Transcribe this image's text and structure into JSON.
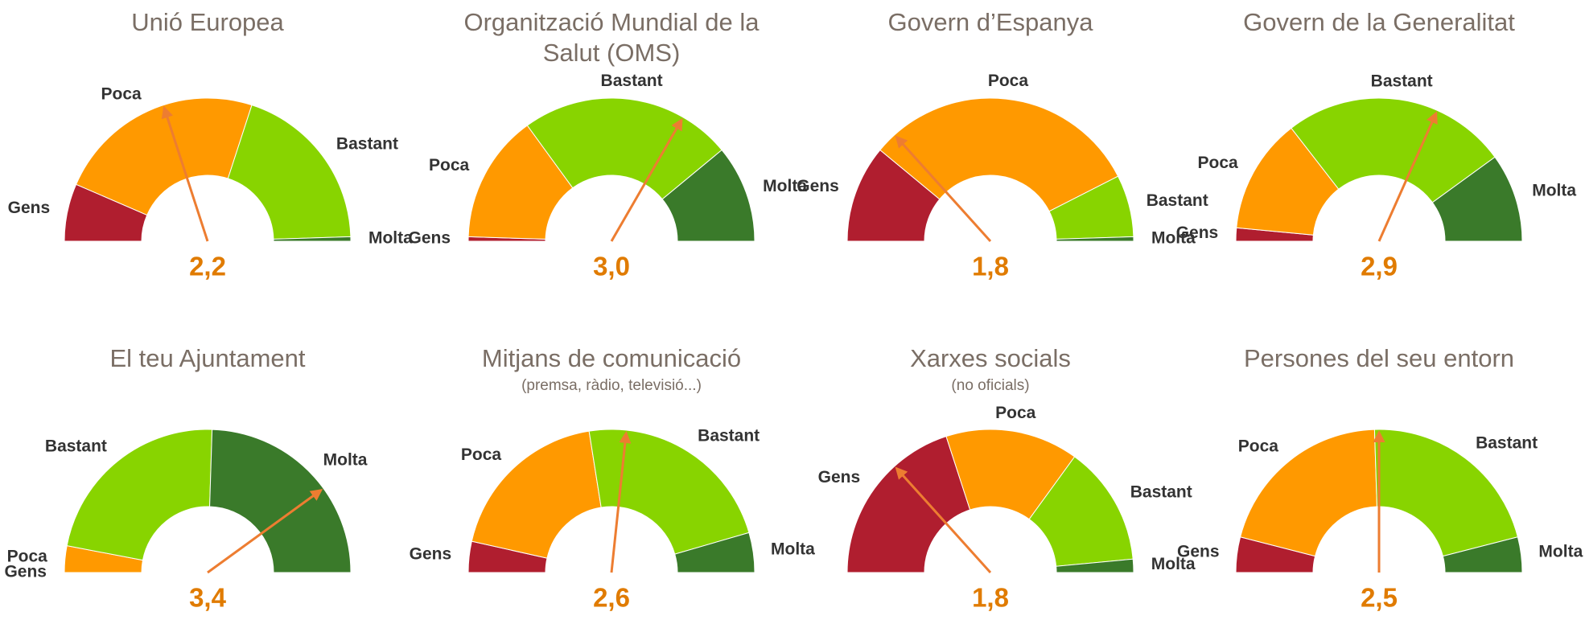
{
  "chart_data": [
    {
      "type": "gauge",
      "title": "Unió Europea",
      "categories": [
        "Gens",
        "Poca",
        "Bastant",
        "Molta"
      ],
      "values": [
        13,
        47,
        39,
        1
      ],
      "colors": [
        "#b01e2f",
        "#ff9900",
        "#88d400",
        "#3a7a2a"
      ],
      "needle": 2.2,
      "needle_label": "2,2",
      "needle_lim": [
        1,
        4
      ]
    },
    {
      "type": "gauge",
      "title": "Organització Mundial de la Salut (OMS)",
      "categories": [
        "Gens",
        "Poca",
        "Bastant",
        "Molta"
      ],
      "values": [
        1,
        29,
        48,
        22
      ],
      "colors": [
        "#b01e2f",
        "#ff9900",
        "#88d400",
        "#3a7a2a"
      ],
      "needle": 3.0,
      "needle_label": "3,0",
      "needle_lim": [
        1,
        4
      ]
    },
    {
      "type": "gauge",
      "title": "Govern d’Espanya",
      "categories": [
        "Gens",
        "Poca",
        "Bastant",
        "Molta"
      ],
      "values": [
        22,
        63,
        14,
        1
      ],
      "colors": [
        "#b01e2f",
        "#ff9900",
        "#88d400",
        "#3a7a2a"
      ],
      "needle": 1.8,
      "needle_label": "1,8",
      "needle_lim": [
        1,
        4
      ]
    },
    {
      "type": "gauge",
      "title": "Govern de la Generalitat",
      "categories": [
        "Gens",
        "Poca",
        "Bastant",
        "Molta"
      ],
      "values": [
        3,
        26,
        51,
        20
      ],
      "colors": [
        "#b01e2f",
        "#ff9900",
        "#88d400",
        "#3a7a2a"
      ],
      "needle": 2.9,
      "needle_label": "2,9",
      "needle_lim": [
        1,
        4
      ]
    },
    {
      "type": "gauge",
      "title": "El teu Ajuntament",
      "categories": [
        "Gens",
        "Poca",
        "Bastant",
        "Molta"
      ],
      "values": [
        0,
        6,
        45,
        49
      ],
      "colors": [
        "#b01e2f",
        "#ff9900",
        "#88d400",
        "#3a7a2a"
      ],
      "needle": 3.4,
      "needle_label": "3,4",
      "needle_lim": [
        1,
        4
      ]
    },
    {
      "type": "gauge",
      "title": "Mitjans de comunicació",
      "subtitle": "(premsa, ràdio, televisió...)",
      "categories": [
        "Gens",
        "Poca",
        "Bastant",
        "Molta"
      ],
      "values": [
        7,
        38,
        46,
        9
      ],
      "colors": [
        "#b01e2f",
        "#ff9900",
        "#88d400",
        "#3a7a2a"
      ],
      "needle": 2.6,
      "needle_label": "2,6",
      "needle_lim": [
        1,
        4
      ]
    },
    {
      "type": "gauge",
      "title": "Xarxes socials",
      "subtitle": "(no oficials)",
      "categories": [
        "Gens",
        "Poca",
        "Bastant",
        "Molta"
      ],
      "values": [
        40,
        30,
        27,
        3
      ],
      "colors": [
        "#b01e2f",
        "#ff9900",
        "#88d400",
        "#3a7a2a"
      ],
      "needle": 1.8,
      "needle_label": "1,8",
      "needle_lim": [
        1,
        4
      ]
    },
    {
      "type": "gauge",
      "title": "Persones del seu entorn",
      "categories": [
        "Gens",
        "Poca",
        "Bastant",
        "Molta"
      ],
      "values": [
        8,
        41,
        43,
        8
      ],
      "colors": [
        "#b01e2f",
        "#ff9900",
        "#88d400",
        "#3a7a2a"
      ],
      "needle": 2.5,
      "needle_label": "2,5",
      "needle_lim": [
        1,
        4
      ]
    }
  ]
}
